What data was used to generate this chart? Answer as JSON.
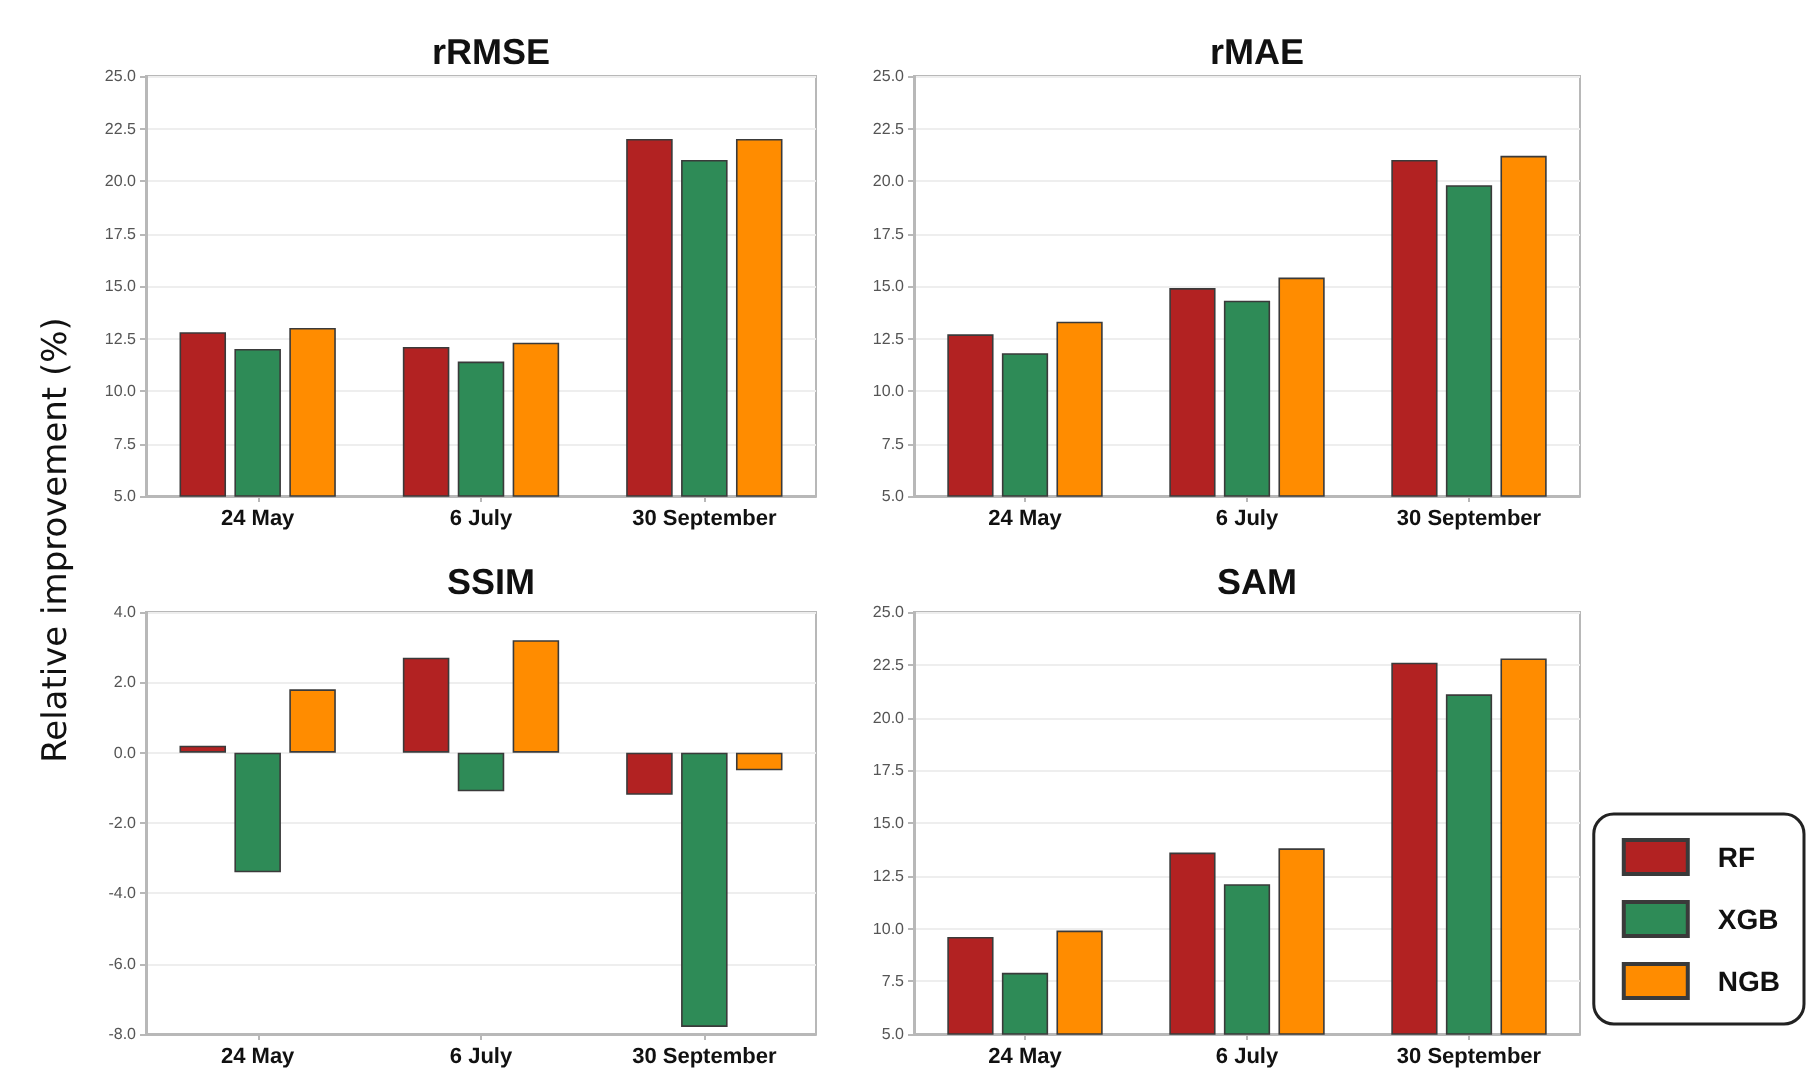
{
  "chart_data": [
    {
      "type": "bar",
      "title": "rRMSE",
      "ylabel": "Relative improvement (%)",
      "categories": [
        "24 May",
        "6 July",
        "30 September"
      ],
      "series": [
        {
          "color": "#b22222",
          "values": [
            12.8,
            12.1,
            22.0
          ]
        },
        {
          "color": "#2e8b57",
          "values": [
            12.0,
            11.4,
            21.0
          ]
        },
        {
          "color": "#ff8c00",
          "values": [
            13.0,
            12.3,
            22.0
          ]
        }
      ],
      "ylim": [
        5,
        25
      ],
      "yticks": [
        {
          "value": 5,
          "label": "5.0"
        },
        7.5,
        {
          "value": 10,
          "label": "10.0"
        },
        12.5,
        {
          "value": 15,
          "label": "15.0"
        },
        17.5,
        {
          "value": 20,
          "label": "20.0"
        },
        22.5,
        {
          "value": 25,
          "label": "25.0"
        }
      ],
      "grid": "y",
      "legend": false
    },
    {
      "type": "bar",
      "title": "rMAE",
      "categories": [
        "24 May",
        "6 July",
        "30 September"
      ],
      "series": [
        {
          "color": "#b22222",
          "values": [
            12.7,
            14.9,
            21.0
          ]
        },
        {
          "color": "#2e8b57",
          "values": [
            11.8,
            14.3,
            19.8
          ]
        },
        {
          "color": "#ff8c00",
          "values": [
            13.3,
            15.4,
            21.2
          ]
        }
      ],
      "ylim": [
        5,
        25
      ],
      "yticks": [
        {
          "value": 5,
          "label": "5.0"
        },
        7.5,
        {
          "value": 10,
          "label": "10.0"
        },
        12.5,
        {
          "value": 15,
          "label": "15.0"
        },
        17.5,
        {
          "value": 20,
          "label": "20.0"
        },
        22.5,
        {
          "value": 25,
          "label": "25.0"
        }
      ],
      "grid": "y",
      "legend": false
    },
    {
      "type": "bar",
      "title": "SSIM",
      "categories": [
        "24 May",
        "6 July",
        "30 September"
      ],
      "series": [
        {
          "color": "#b22222",
          "values": [
            0.2,
            2.7,
            -1.2
          ]
        },
        {
          "color": "#2e8b57",
          "values": [
            -3.4,
            -1.1,
            -7.8
          ]
        },
        {
          "color": "#ff8c00",
          "values": [
            1.8,
            3.2,
            -0.5
          ]
        }
      ],
      "ylim": [
        -8,
        4
      ],
      "yticks": [
        {
          "value": -8,
          "label": "-8.0"
        },
        {
          "value": -6,
          "label": "-6.0"
        },
        {
          "value": -4,
          "label": "-4.0"
        },
        {
          "value": -2,
          "label": "-2.0"
        },
        {
          "value": 0,
          "label": "0.0"
        },
        {
          "value": 2,
          "label": "2.0"
        },
        {
          "value": 4,
          "label": "4.0"
        }
      ],
      "grid": "y",
      "legend": false
    },
    {
      "type": "bar",
      "title": "SAM",
      "categories": [
        "24 May",
        "6 July",
        "30 September"
      ],
      "series": [
        {
          "name": "RF",
          "color": "#b22222",
          "values": [
            9.6,
            13.6,
            22.6
          ]
        },
        {
          "name": "XGB",
          "color": "#2e8b57",
          "values": [
            7.9,
            12.1,
            21.1
          ]
        },
        {
          "name": "NGB",
          "color": "#ff8c00",
          "values": [
            9.9,
            13.8,
            22.8
          ]
        }
      ],
      "ylim": [
        5,
        25
      ],
      "yticks": [
        {
          "value": 5,
          "label": "5.0"
        },
        7.5,
        {
          "value": 10,
          "label": "10.0"
        },
        12.5,
        {
          "value": 15,
          "label": "15.0"
        },
        17.5,
        {
          "value": 20,
          "label": "20.0"
        },
        22.5,
        {
          "value": 25,
          "label": "25.0"
        }
      ],
      "grid": "y",
      "legend": "bottom right"
    }
  ]
}
